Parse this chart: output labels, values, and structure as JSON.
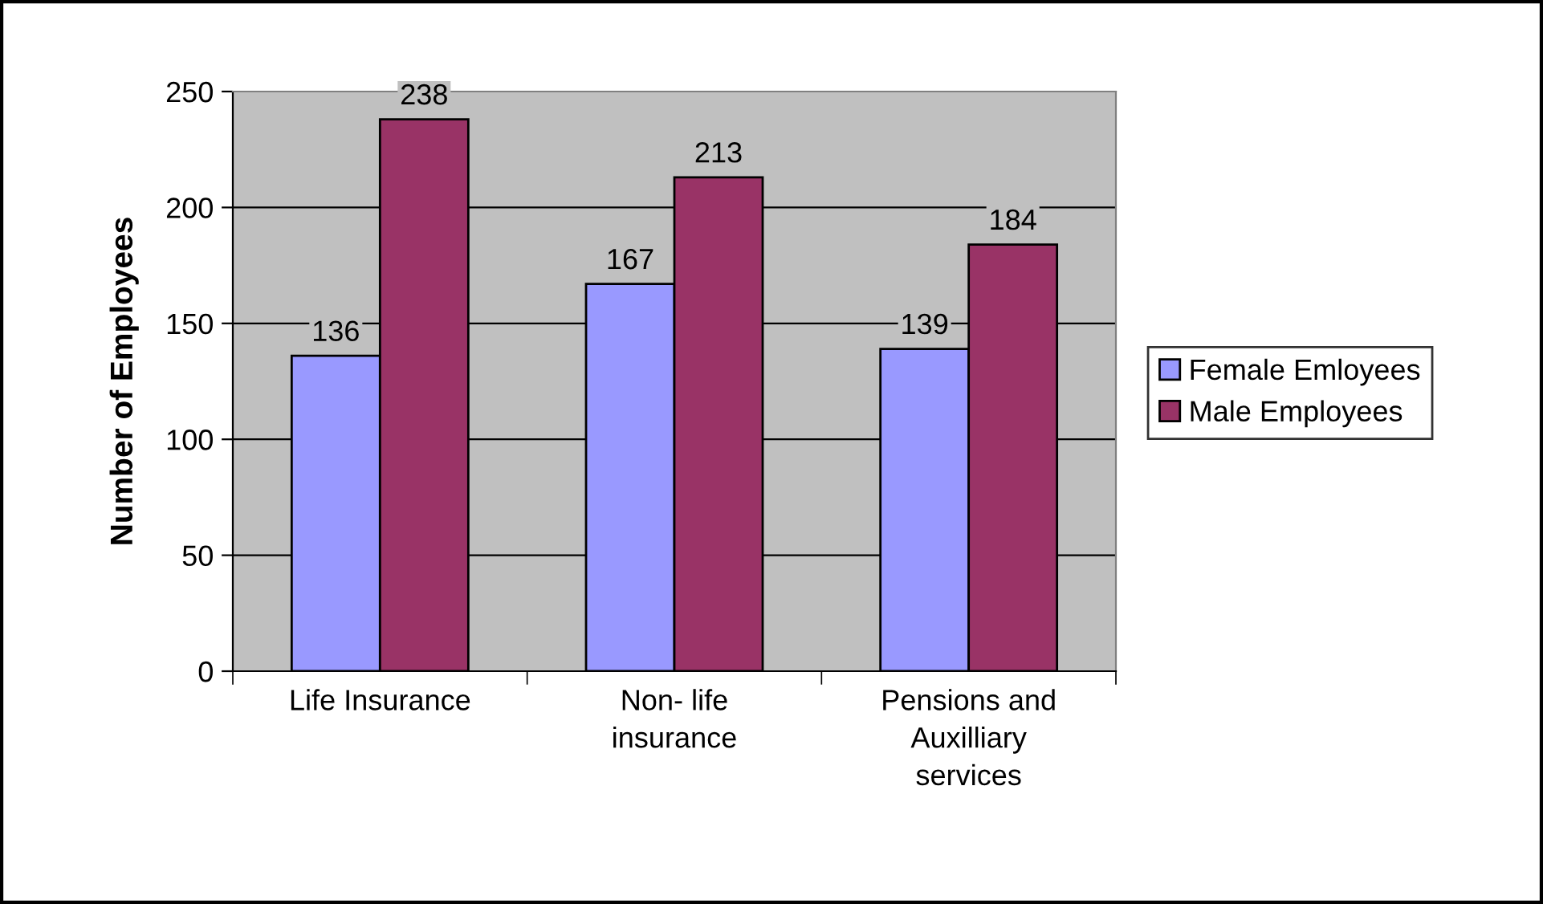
{
  "chart_data": {
    "type": "bar",
    "ylabel": "Number of Employees",
    "categories": [
      "Life Insurance",
      "Non- life\ninsurance",
      "Pensions and\nAuxilliary\nservices"
    ],
    "series": [
      {
        "name": "Female Emloyees",
        "color": "#9999ff",
        "values": [
          136,
          167,
          139
        ]
      },
      {
        "name": "Male Employees",
        "color": "#993366",
        "values": [
          238,
          213,
          184
        ]
      }
    ],
    "ylim": [
      0,
      250
    ],
    "yticks": [
      0,
      50,
      100,
      150,
      200,
      250
    ],
    "grid": "y",
    "legend": "right",
    "data_labels": true
  }
}
